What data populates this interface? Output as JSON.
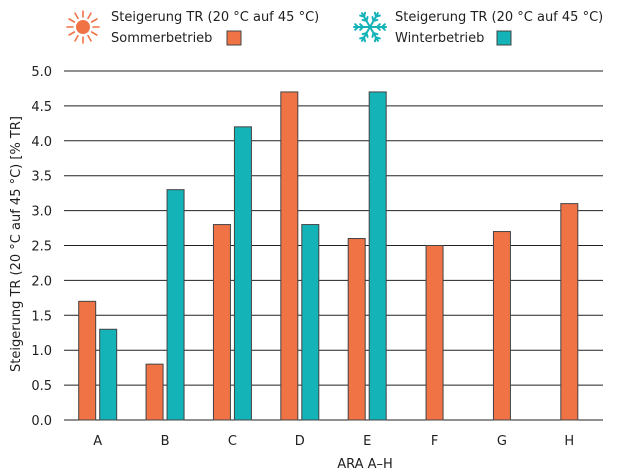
{
  "chart_data": {
    "type": "bar",
    "categories": [
      "A",
      "B",
      "C",
      "D",
      "E",
      "F",
      "G",
      "H"
    ],
    "series": [
      {
        "name_line1": "Steigerung TR (20 °C auf 45 °C)",
        "name_line2": "Sommerbetrieb",
        "icon": "sun-icon",
        "color": "#f07346",
        "values": [
          1.7,
          0.8,
          2.8,
          4.7,
          2.6,
          2.5,
          2.7,
          3.1
        ]
      },
      {
        "name_line1": "Steigerung TR (20 °C auf 45 °C)",
        "name_line2": "Winterbetrieb",
        "icon": "snowflake-icon",
        "color": "#14b3b8",
        "values": [
          1.3,
          3.3,
          4.2,
          2.8,
          4.7,
          null,
          null,
          null
        ]
      }
    ],
    "ylim": [
      0,
      5
    ],
    "yticks": [
      "0.0",
      "0.5",
      "1.0",
      "1.5",
      "2.0",
      "2.5",
      "3.0",
      "3.5",
      "4.0",
      "4.5",
      "5.0"
    ],
    "xlabel": "ARA A–H",
    "ylabel": "Steigerung TR (20 °C auf 45 °C) [% TR]",
    "grid": true,
    "legend_position": "top",
    "colors": {
      "sun_icon": "#f07346",
      "snowflake_icon": "#14b3b8",
      "bar_outline": "#444444",
      "gridline": "#222222"
    }
  }
}
